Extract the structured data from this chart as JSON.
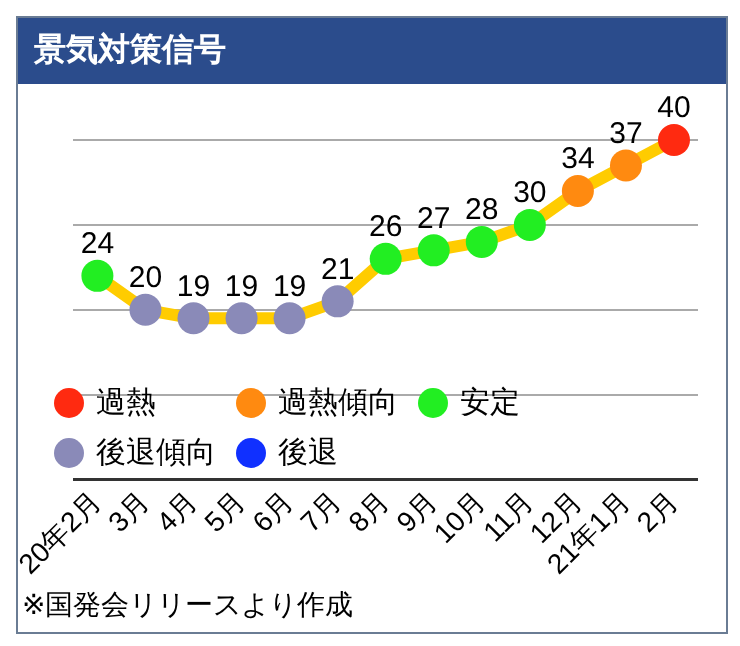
{
  "chart_data": {
    "type": "line",
    "title": "景気対策信号",
    "categories": [
      "20年2月",
      "3月",
      "4月",
      "5月",
      "6月",
      "7月",
      "8月",
      "9月",
      "10月",
      "11月",
      "12月",
      "21年1月",
      "2月"
    ],
    "series": [
      {
        "type": "line",
        "color": "#ffcc00",
        "marker": "none",
        "values": [
          24,
          20,
          19,
          19,
          19,
          21,
          26,
          27,
          28,
          30,
          34,
          37,
          40
        ],
        "value_labels": [
          "24",
          "20",
          "19",
          "19",
          "19",
          "21",
          "26",
          "27",
          "28",
          "30",
          "34",
          "37",
          "40"
        ]
      },
      {
        "type": "scatter",
        "name": "過熱",
        "color": "#ff2a10",
        "marker": "circle",
        "values": [
          null,
          null,
          null,
          null,
          null,
          null,
          null,
          null,
          null,
          null,
          null,
          null,
          40
        ]
      },
      {
        "type": "scatter",
        "name": "過熱傾向",
        "color": "#ff8a10",
        "marker": "circle",
        "values": [
          null,
          null,
          null,
          null,
          null,
          null,
          null,
          null,
          null,
          null,
          34,
          37,
          null
        ]
      },
      {
        "type": "scatter",
        "name": "安定",
        "color": "#22ee22",
        "marker": "circle",
        "values": [
          24,
          null,
          null,
          null,
          null,
          null,
          26,
          27,
          28,
          30,
          null,
          null,
          null
        ]
      },
      {
        "type": "scatter",
        "name": "後退傾向",
        "color": "#8a8ab8",
        "marker": "circle",
        "values": [
          null,
          20,
          19,
          19,
          19,
          21,
          null,
          null,
          null,
          null,
          null,
          null,
          null
        ]
      },
      {
        "type": "scatter",
        "name": "後退",
        "color": "#1030ff",
        "marker": "circle",
        "values": [
          null,
          null,
          null,
          null,
          null,
          null,
          null,
          null,
          null,
          null,
          null,
          null,
          null
        ]
      }
    ],
    "ylim": [
      0,
      40
    ],
    "yticks": [
      {
        "value": 0,
        "label": null
      },
      {
        "value": 10,
        "label": null
      },
      {
        "value": 20,
        "label": null
      },
      {
        "value": 30,
        "label": null
      },
      {
        "value": 40,
        "label": null
      }
    ],
    "tick_labels": "x",
    "grid": "y",
    "legend": "bottom left",
    "annotations": [
      "※国発会リリースより作成"
    ]
  }
}
